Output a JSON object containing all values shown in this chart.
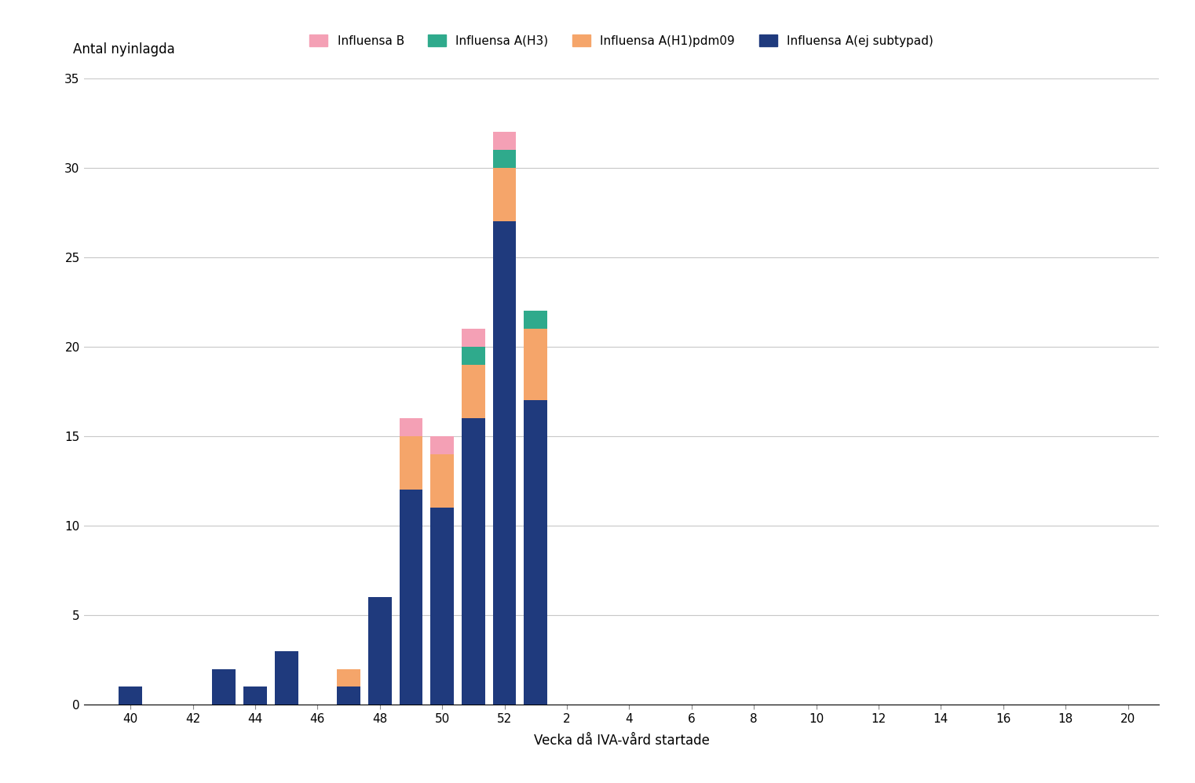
{
  "bars": {
    "week_positions": [
      40,
      43,
      44,
      45,
      47,
      48,
      49,
      50,
      51,
      52,
      53
    ],
    "influensa_a_ej": [
      1,
      2,
      1,
      3,
      1,
      6,
      12,
      11,
      16,
      27,
      17
    ],
    "influensa_a_h1pdm09": [
      0,
      0,
      0,
      0,
      1,
      0,
      3,
      3,
      3,
      3,
      4
    ],
    "influensa_a_h3": [
      0,
      0,
      0,
      0,
      0,
      0,
      0,
      0,
      1,
      1,
      1
    ],
    "influensa_b": [
      0,
      0,
      0,
      0,
      0,
      0,
      1,
      1,
      1,
      1,
      0
    ]
  },
  "colors": {
    "influensa_b": "#f4a0b5",
    "influensa_a_h3": "#2faa8c",
    "influensa_a_h1pdm09": "#f5a56a",
    "influensa_a_ej": "#1f3a7d"
  },
  "legend_labels": [
    "Influensa B",
    "Influensa A(H3)",
    "Influensa A(H1)pdm09",
    "Influensa A(ej subtypad)"
  ],
  "ylabel": "Antal nyinlagda",
  "xlabel": "Vecka då IVA-vård startade",
  "ylim": [
    0,
    35
  ],
  "yticks": [
    0,
    5,
    10,
    15,
    20,
    25,
    30,
    35
  ],
  "tick_positions": [
    40,
    42,
    44,
    46,
    48,
    50,
    52,
    54,
    56,
    58,
    60,
    62,
    64,
    66,
    68,
    70,
    72
  ],
  "tick_labels": [
    "40",
    "42",
    "44",
    "46",
    "48",
    "50",
    "52",
    "2",
    "4",
    "6",
    "8",
    "10",
    "12",
    "14",
    "16",
    "18",
    "20"
  ],
  "xlim": [
    38.5,
    73
  ],
  "background_color": "#ffffff",
  "grid_color": "#c8c8c8",
  "axis_fontsize": 12,
  "tick_fontsize": 11,
  "legend_fontsize": 11,
  "bar_width": 0.75
}
